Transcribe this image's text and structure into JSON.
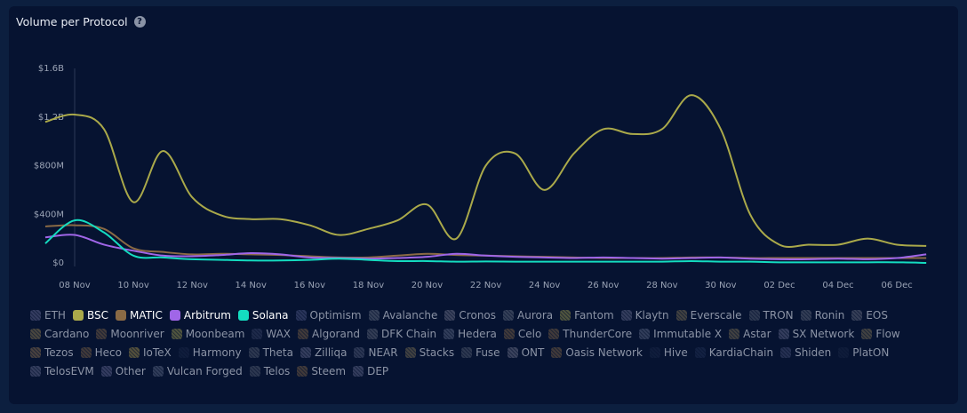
{
  "title": "Volume per Protocol",
  "help_icon": "question-circle-icon",
  "chart_data": {
    "type": "line",
    "title": "Volume per Protocol",
    "xlabel": "",
    "ylabel": "",
    "x": [
      "07 Nov",
      "08 Nov",
      "09 Nov",
      "10 Nov",
      "11 Nov",
      "12 Nov",
      "13 Nov",
      "14 Nov",
      "15 Nov",
      "16 Nov",
      "17 Nov",
      "18 Nov",
      "19 Nov",
      "20 Nov",
      "21 Nov",
      "22 Nov",
      "23 Nov",
      "24 Nov",
      "25 Nov",
      "26 Nov",
      "27 Nov",
      "28 Nov",
      "29 Nov",
      "30 Nov",
      "01 Dec",
      "02 Dec",
      "03 Dec",
      "04 Dec",
      "05 Dec",
      "06 Dec",
      "07 Dec"
    ],
    "x_ticks": [
      "08 Nov",
      "10 Nov",
      "12 Nov",
      "14 Nov",
      "16 Nov",
      "18 Nov",
      "20 Nov",
      "22 Nov",
      "24 Nov",
      "26 Nov",
      "28 Nov",
      "30 Nov",
      "02 Dec",
      "04 Dec",
      "06 Dec"
    ],
    "y_ticks": [
      "$0",
      "$400M",
      "$800M",
      "$1.2B",
      "$1.6B"
    ],
    "y_tick_values": [
      0,
      400,
      800,
      1200,
      1600
    ],
    "y_unit": "$M",
    "ylim": [
      0,
      1600
    ],
    "grid": false,
    "legend_position": "bottom",
    "series": [
      {
        "name": "BSC",
        "color": "#aaa94a",
        "values": [
          1160,
          1220,
          1100,
          500,
          920,
          540,
          390,
          360,
          360,
          310,
          230,
          280,
          350,
          480,
          200,
          800,
          900,
          600,
          900,
          1100,
          1060,
          1100,
          1380,
          1100,
          400,
          150,
          150,
          150,
          200,
          150,
          140
        ]
      },
      {
        "name": "MATIC",
        "color": "#8a6a45",
        "values": [
          300,
          310,
          280,
          120,
          90,
          70,
          75,
          70,
          65,
          55,
          45,
          45,
          60,
          75,
          65,
          60,
          55,
          50,
          45,
          40,
          40,
          40,
          45,
          45,
          40,
          40,
          40,
          40,
          40,
          40,
          40
        ]
      },
      {
        "name": "Arbitrum",
        "color": "#a066e8",
        "values": [
          210,
          230,
          150,
          100,
          60,
          55,
          65,
          80,
          70,
          45,
          40,
          35,
          40,
          50,
          75,
          60,
          50,
          45,
          40,
          45,
          40,
          35,
          40,
          45,
          35,
          30,
          30,
          35,
          30,
          40,
          70
        ]
      },
      {
        "name": "Solana",
        "color": "#14dcc0",
        "values": [
          160,
          350,
          250,
          60,
          45,
          30,
          25,
          20,
          20,
          25,
          35,
          25,
          15,
          15,
          10,
          12,
          10,
          10,
          10,
          10,
          10,
          10,
          15,
          10,
          10,
          5,
          5,
          5,
          5,
          5,
          0
        ]
      }
    ]
  },
  "legend": [
    {
      "name": "ETH",
      "color": "#6d6f99",
      "active": false
    },
    {
      "name": "BSC",
      "color": "#aaa94a",
      "active": true
    },
    {
      "name": "MATIC",
      "color": "#8a6a45",
      "active": true
    },
    {
      "name": "Arbitrum",
      "color": "#a066e8",
      "active": true
    },
    {
      "name": "Solana",
      "color": "#14dcc0",
      "active": true
    },
    {
      "name": "Optimism",
      "color": "#56608e",
      "active": false
    },
    {
      "name": "Avalanche",
      "color": "#6f7889",
      "active": false
    },
    {
      "name": "Cronos",
      "color": "#7c7f94",
      "active": false
    },
    {
      "name": "Aurora",
      "color": "#6f7889",
      "active": false
    },
    {
      "name": "Fantom",
      "color": "#a8a44e",
      "active": false
    },
    {
      "name": "Klaytn",
      "color": "#6c7094",
      "active": false
    },
    {
      "name": "Everscale",
      "color": "#8a7a55",
      "active": false
    },
    {
      "name": "TRON",
      "color": "#5e6677",
      "active": false
    },
    {
      "name": "Ronin",
      "color": "#6a7182",
      "active": false
    },
    {
      "name": "EOS",
      "color": "#707586",
      "active": false
    },
    {
      "name": "Cardano",
      "color": "#9a8450",
      "active": false
    },
    {
      "name": "Moonriver",
      "color": "#8a6a45",
      "active": false
    },
    {
      "name": "Moonbeam",
      "color": "#a8a44e",
      "active": false
    },
    {
      "name": "WAX",
      "color": "#3d466a",
      "active": false
    },
    {
      "name": "Algorand",
      "color": "#8a6a45",
      "active": false
    },
    {
      "name": "DFK Chain",
      "color": "#6a7182",
      "active": false
    },
    {
      "name": "Hedera",
      "color": "#66708c",
      "active": false
    },
    {
      "name": "Celo",
      "color": "#8a6a45",
      "active": false
    },
    {
      "name": "ThunderCore",
      "color": "#8a6a45",
      "active": false
    },
    {
      "name": "Immutable X",
      "color": "#66708c",
      "active": false
    },
    {
      "name": "Astar",
      "color": "#8a7a55",
      "active": false
    },
    {
      "name": "SX Network",
      "color": "#6c7094",
      "active": false
    },
    {
      "name": "Flow",
      "color": "#8a7a55",
      "active": false
    },
    {
      "name": "Tezos",
      "color": "#9a7a50",
      "active": false
    },
    {
      "name": "Heco",
      "color": "#8a6a45",
      "active": false
    },
    {
      "name": "IoTeX",
      "color": "#b09a4a",
      "active": false
    },
    {
      "name": "Harmony",
      "color": "#1e2a4a",
      "active": false
    },
    {
      "name": "Theta",
      "color": "#5e6677",
      "active": false
    },
    {
      "name": "Zilliqa",
      "color": "#6c7094",
      "active": false
    },
    {
      "name": "NEAR",
      "color": "#5a6480",
      "active": false
    },
    {
      "name": "Stacks",
      "color": "#8a7a55",
      "active": false
    },
    {
      "name": "Fuse",
      "color": "#5e6677",
      "active": false
    },
    {
      "name": "ONT",
      "color": "#7c7f94",
      "active": false
    },
    {
      "name": "Oasis Network",
      "color": "#8a6a45",
      "active": false
    },
    {
      "name": "Hive",
      "color": "#1e2a4a",
      "active": false
    },
    {
      "name": "KardiaChain",
      "color": "#243357",
      "active": false
    },
    {
      "name": "Shiden",
      "color": "#4c557a",
      "active": false
    },
    {
      "name": "PlatON",
      "color": "#1b2746",
      "active": false
    },
    {
      "name": "TelosEVM",
      "color": "#6c7094",
      "active": false
    },
    {
      "name": "Other",
      "color": "#6d6f99",
      "active": false
    },
    {
      "name": "Vulcan Forged",
      "color": "#66708c",
      "active": false
    },
    {
      "name": "Telos",
      "color": "#5e6677",
      "active": false
    },
    {
      "name": "Steem",
      "color": "#8a6a45",
      "active": false
    },
    {
      "name": "DEP",
      "color": "#6c7094",
      "active": false
    }
  ]
}
